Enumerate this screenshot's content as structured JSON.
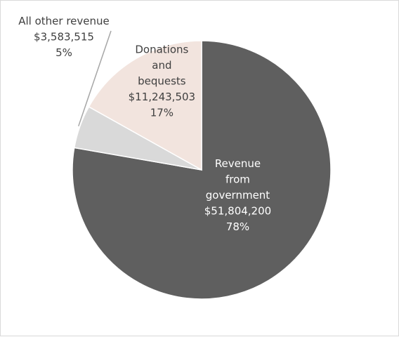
{
  "chart_data": {
    "type": "pie",
    "title": "",
    "slices": [
      {
        "name": "Revenue from government",
        "label_lines": [
          "Revenue",
          "from",
          "government"
        ],
        "value": 51804200,
        "value_label": "$51,804,200",
        "percent_label": "78%",
        "color": "#5f5f5f",
        "label_color": "#ffffff"
      },
      {
        "name": "All other revenue",
        "label_lines": [
          "All other revenue"
        ],
        "value": 3583515,
        "value_label": "$3,583,515",
        "percent_label": "5%",
        "color": "#d9d9d9",
        "label_color": "#404040"
      },
      {
        "name": "Donations and bequests",
        "label_lines": [
          "Donations",
          "and",
          "bequests"
        ],
        "value": 11243503,
        "value_label": "$11,243,503",
        "percent_label": "17%",
        "color": "#f2e4de",
        "label_color": "#404040"
      }
    ],
    "start_angle": "12 o'clock",
    "direction": "clockwise",
    "slice_border_color": "#ffffff",
    "legend": "none"
  }
}
